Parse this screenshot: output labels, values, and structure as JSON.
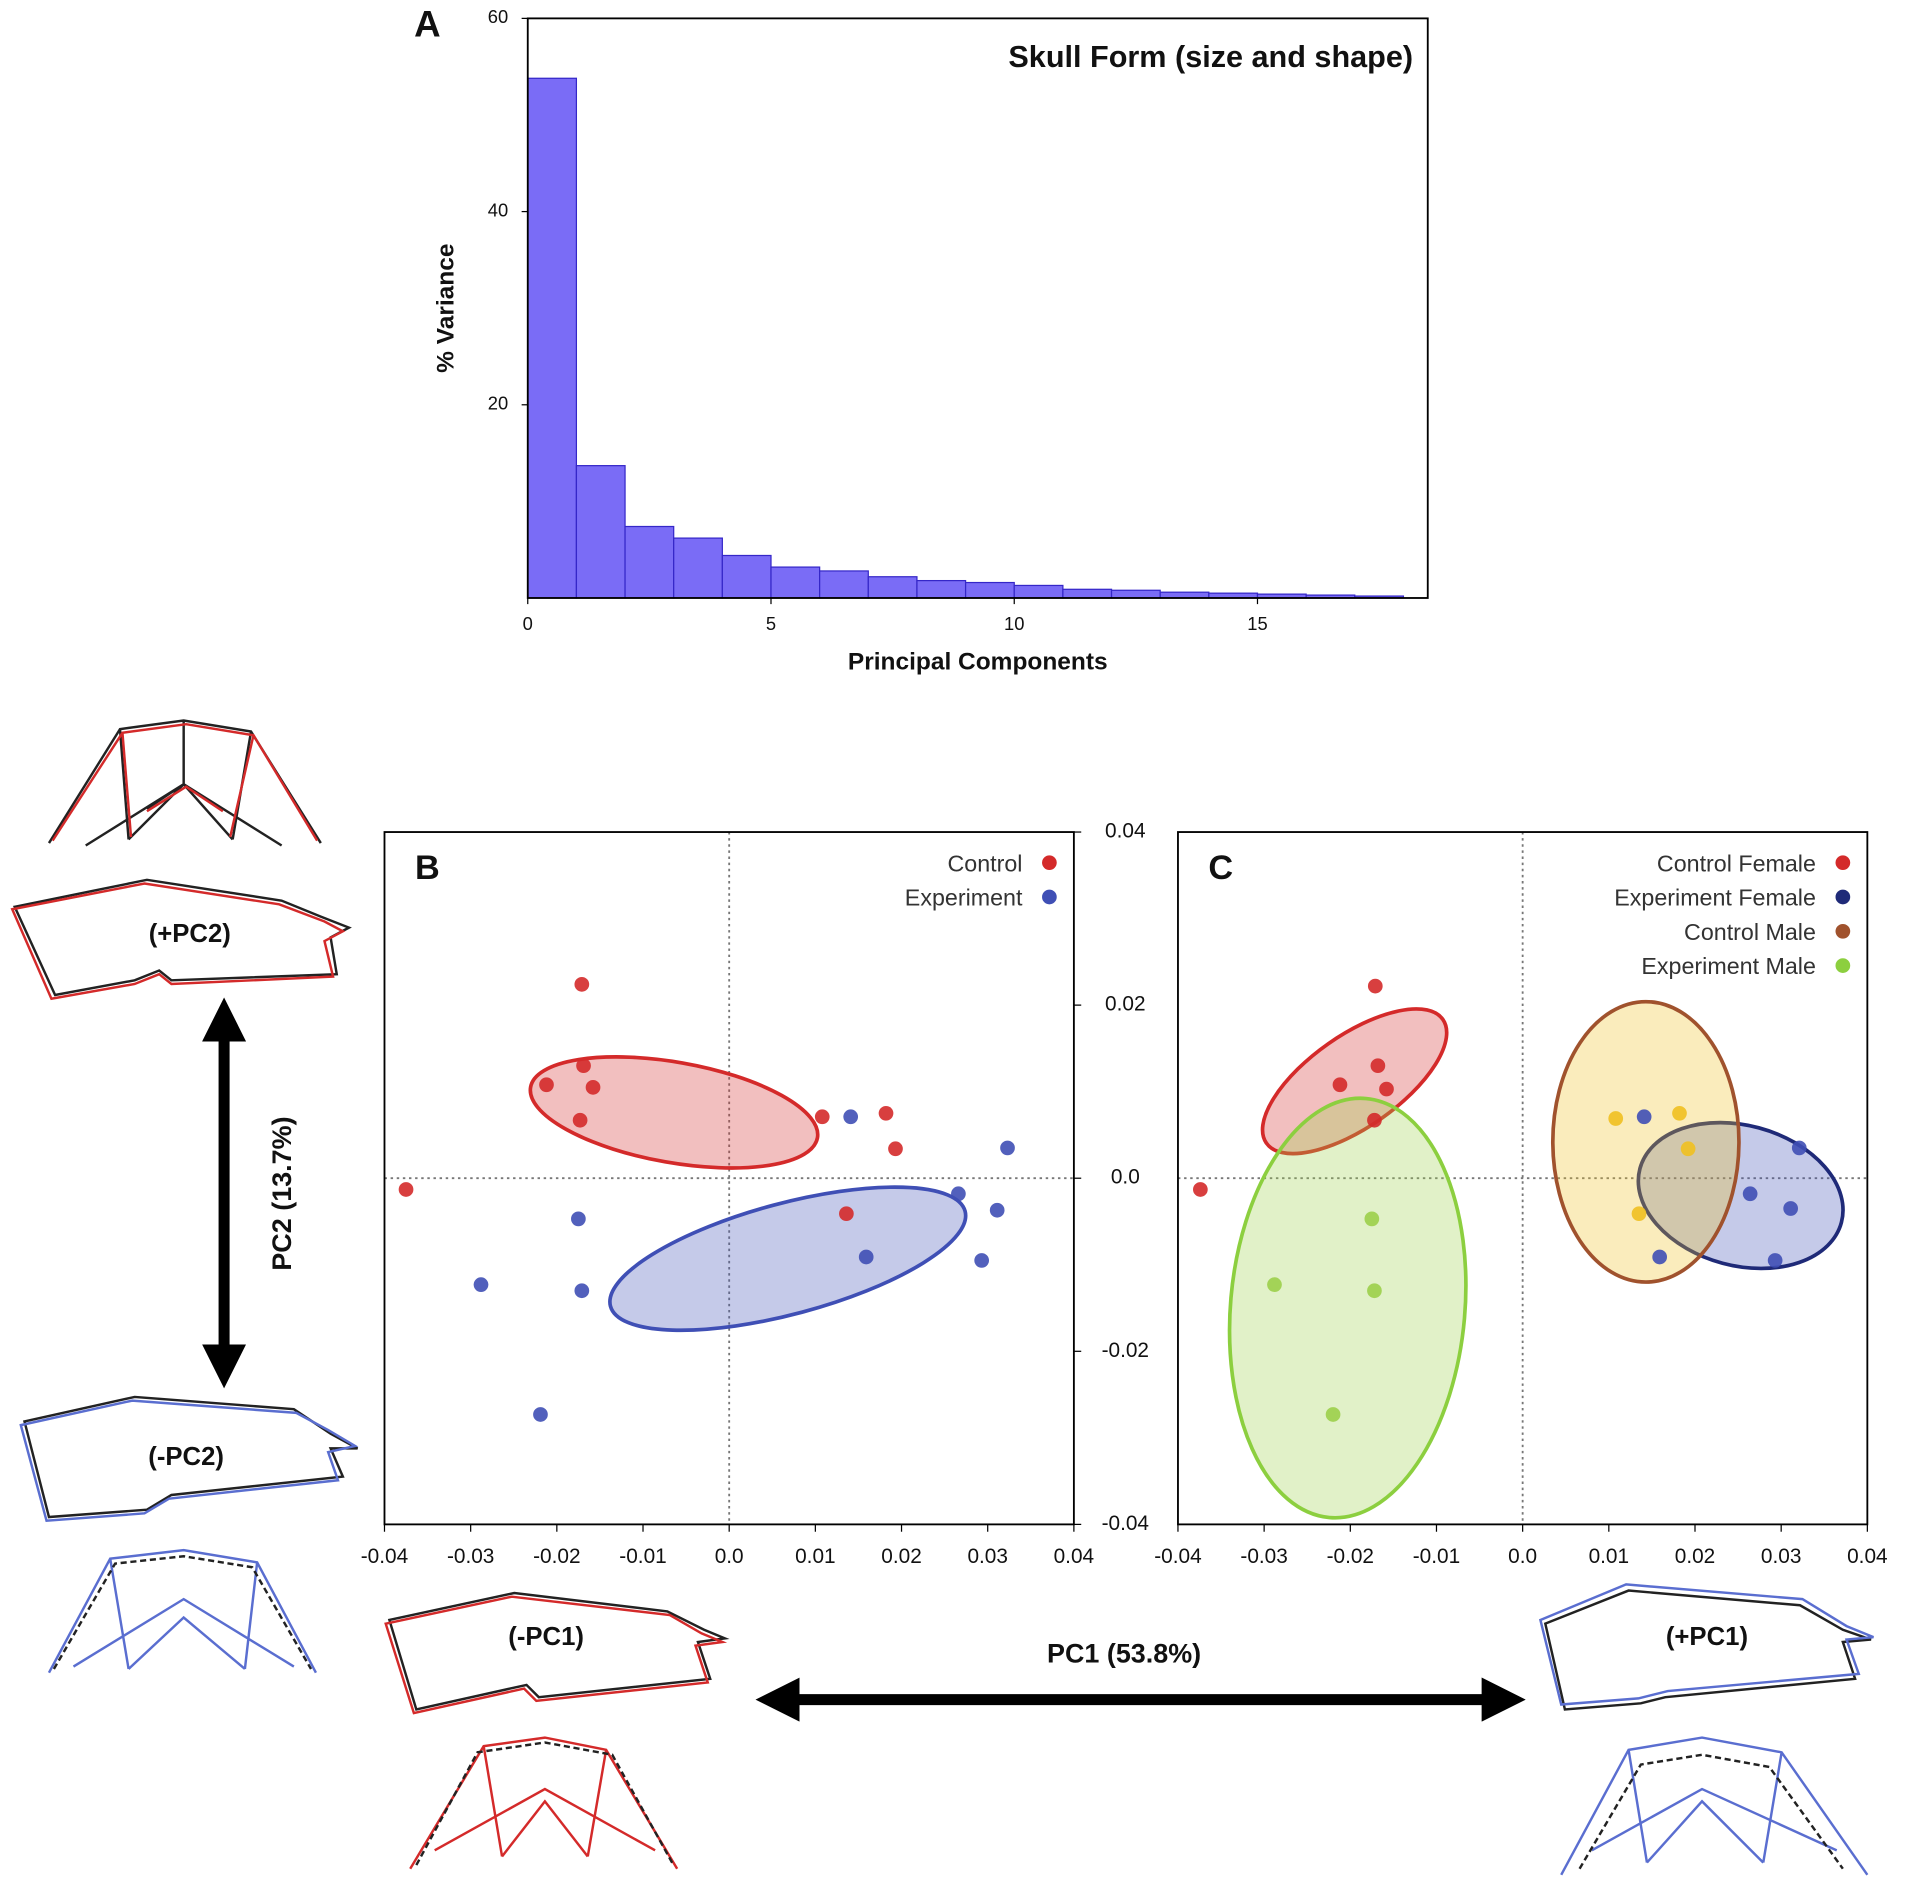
{
  "annotations": {
    "panel_labels": [
      "A",
      "B",
      "C"
    ],
    "pc1_label": "PC1 (53.8%)",
    "pc2_label": "PC2 (13.7%)",
    "skull_labels": [
      "(+PC2)",
      "(-PC2)",
      "(-PC1)",
      "(+PC1)"
    ]
  },
  "chart_data": [
    {
      "type": "histogram",
      "title": "Skull Form (size and shape)",
      "x_label": "Principal Components",
      "y_label": "% Variance",
      "bins": [
        0,
        1,
        2,
        3,
        4,
        5,
        6,
        7,
        8,
        9,
        10,
        11,
        12,
        13,
        14,
        15,
        16,
        17,
        18
      ],
      "values": [
        53.8,
        13.7,
        7.4,
        6.2,
        4.4,
        3.2,
        2.8,
        2.2,
        1.8,
        1.6,
        1.3,
        0.9,
        0.8,
        0.6,
        0.5,
        0.4,
        0.3,
        0.2
      ],
      "color": "#7a6cf6",
      "xlim": [
        0,
        18.5
      ],
      "xticks": [
        0,
        5,
        10,
        15
      ],
      "ylim": [
        0,
        60
      ],
      "yticks": [
        20,
        40,
        60
      ]
    },
    {
      "type": "scatter",
      "xlim": [
        -0.04,
        0.04
      ],
      "xticks": [
        -0.04,
        -0.03,
        -0.02,
        -0.01,
        {
          "value": 0,
          "label": "0.0"
        },
        0.01,
        0.02,
        0.03,
        0.04
      ],
      "ylim": [
        -0.04,
        0.04
      ],
      "yticks": [
        0.04,
        0.02,
        {
          "value": 0,
          "label": "0.0"
        },
        -0.02,
        -0.04
      ],
      "legend": "upper right",
      "series": [
        {
          "name": "Control",
          "color": "#d42a2a",
          "x": [
            -0.0375,
            -0.0171,
            -0.0169,
            -0.0212,
            -0.0158,
            -0.0173,
            0.0108,
            0.0182,
            0.0193,
            0.0136
          ],
          "y": [
            -0.0013,
            0.0224,
            0.013,
            0.0108,
            0.0105,
            0.0067,
            0.0071,
            0.0075,
            0.0034,
            -0.0041
          ],
          "ellipse": {
            "center": [
              -0.0064,
              0.0076
            ],
            "axes": [
              0.0169,
              0.0058
            ],
            "angle": 10
          }
        },
        {
          "name": "Experiment",
          "color": "#3f4fb5",
          "x": [
            0.0141,
            0.0323,
            0.0266,
            0.0311,
            0.0293,
            0.0159,
            -0.0175,
            -0.0171,
            -0.0288,
            -0.0219
          ],
          "y": [
            0.0071,
            0.0035,
            -0.0018,
            -0.0037,
            -0.0095,
            -0.0091,
            -0.0047,
            -0.013,
            -0.0123,
            -0.0273
          ],
          "ellipse": {
            "center": [
              0.0068,
              -0.0093
            ],
            "axes": [
              0.0213,
              0.0064
            ],
            "angle": -15
          }
        }
      ]
    },
    {
      "type": "scatter",
      "xlim": [
        -0.04,
        0.04
      ],
      "xticks": [
        -0.04,
        -0.03,
        -0.02,
        -0.01,
        {
          "value": 0,
          "label": "0.0"
        },
        0.01,
        0.02,
        0.03,
        0.04
      ],
      "ylim": [
        -0.04,
        0.04
      ],
      "legend": "upper right",
      "series": [
        {
          "name": "Control Female",
          "color": "#d42a2a",
          "marker_color": "#d42a2a",
          "x": [
            -0.0171,
            -0.0168,
            -0.0212,
            -0.0158,
            -0.0172,
            -0.0374
          ],
          "y": [
            0.0222,
            0.013,
            0.0108,
            0.0103,
            0.0067,
            -0.0013
          ],
          "ellipse": {
            "center": [
              -0.0195,
              0.0112
            ],
            "axes": [
              0.0125,
              0.0053
            ],
            "angle": -35
          }
        },
        {
          "name": "Experiment Female",
          "color": "#1f2a78",
          "marker_color": "#3f4fb5",
          "x": [
            0.0321,
            0.0264,
            0.0311,
            0.0293,
            0.0159,
            0.0141
          ],
          "y": [
            0.0035,
            -0.0018,
            -0.0035,
            -0.0095,
            -0.0091,
            0.0071
          ],
          "ellipse": {
            "center": [
              0.0253,
              -0.002
            ],
            "axes": [
              0.0121,
              0.0081
            ],
            "angle": 15
          }
        },
        {
          "name": "Control Male",
          "color": "#a0522d",
          "marker_color": "#f0c020",
          "x": [
            0.0108,
            0.0182,
            0.0135,
            0.0192
          ],
          "y": [
            0.0069,
            0.0075,
            -0.0041,
            0.0034
          ],
          "ellipse": {
            "center": [
              0.0143,
              0.0042
            ],
            "axes": [
              0.0108,
              0.0162
            ],
            "angle": 0
          }
        },
        {
          "name": "Experiment Male",
          "color": "#8ccf3f",
          "marker_color": "#9ccf4a",
          "x": [
            -0.0175,
            -0.0172,
            -0.0288,
            -0.022
          ],
          "y": [
            -0.0047,
            -0.013,
            -0.0123,
            -0.0273
          ],
          "ellipse": {
            "center": [
              -0.0203,
              -0.015
            ],
            "axes": [
              0.0136,
              0.0243
            ],
            "angle": 5
          }
        }
      ]
    }
  ]
}
